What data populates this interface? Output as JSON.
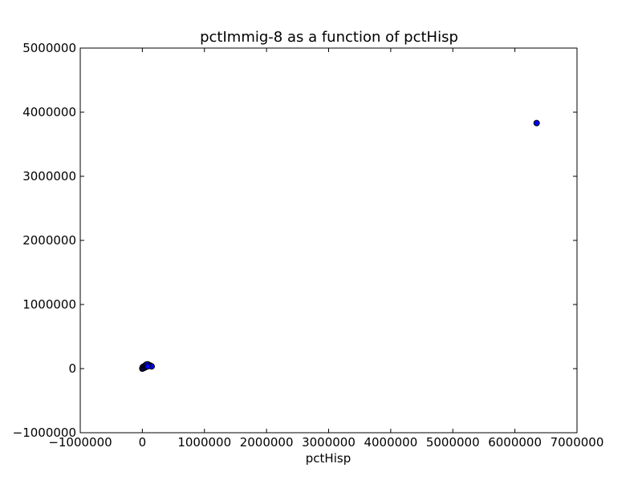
{
  "chart_data": {
    "type": "scatter",
    "title": "pctImmig-8 as a function of pctHisp",
    "xlabel": "pctHisp",
    "ylabel": "",
    "xlim": [
      -1000000,
      7000000
    ],
    "ylim": [
      -1000000,
      5000000
    ],
    "x_ticks": [
      -1000000,
      0,
      1000000,
      2000000,
      3000000,
      4000000,
      5000000,
      6000000,
      7000000
    ],
    "y_ticks": [
      -1000000,
      0,
      1000000,
      2000000,
      3000000,
      4000000,
      5000000
    ],
    "x_tick_labels": [
      "−1000000",
      "0",
      "1000000",
      "2000000",
      "3000000",
      "4000000",
      "5000000",
      "6000000",
      "7000000"
    ],
    "y_tick_labels": [
      "−1000000",
      "0",
      "1000000",
      "2000000",
      "3000000",
      "4000000",
      "5000000"
    ],
    "grid": false,
    "marker_color": "#0000ff",
    "marker_edge_color": "#000000",
    "points": [
      {
        "x": 6350000,
        "y": 3830000
      },
      {
        "x": 0,
        "y": 0
      },
      {
        "x": 10000,
        "y": 5000
      },
      {
        "x": 20000,
        "y": 15000
      },
      {
        "x": 30000,
        "y": 25000
      },
      {
        "x": 40000,
        "y": 40000
      },
      {
        "x": 50000,
        "y": 50000
      },
      {
        "x": 60000,
        "y": 60000
      },
      {
        "x": 70000,
        "y": 55000
      },
      {
        "x": 80000,
        "y": 50000
      },
      {
        "x": 90000,
        "y": 65000
      },
      {
        "x": 100000,
        "y": 45000
      },
      {
        "x": 120000,
        "y": 50000
      },
      {
        "x": 140000,
        "y": 40000
      },
      {
        "x": 150000,
        "y": 35000
      },
      {
        "x": 5000,
        "y": 20000
      },
      {
        "x": 15000,
        "y": 30000
      },
      {
        "x": 25000,
        "y": 10000
      },
      {
        "x": 35000,
        "y": 35000
      },
      {
        "x": 45000,
        "y": 20000
      },
      {
        "x": 55000,
        "y": 30000
      },
      {
        "x": 65000,
        "y": 40000
      },
      {
        "x": 75000,
        "y": 65000
      },
      {
        "x": 85000,
        "y": 35000
      }
    ]
  }
}
